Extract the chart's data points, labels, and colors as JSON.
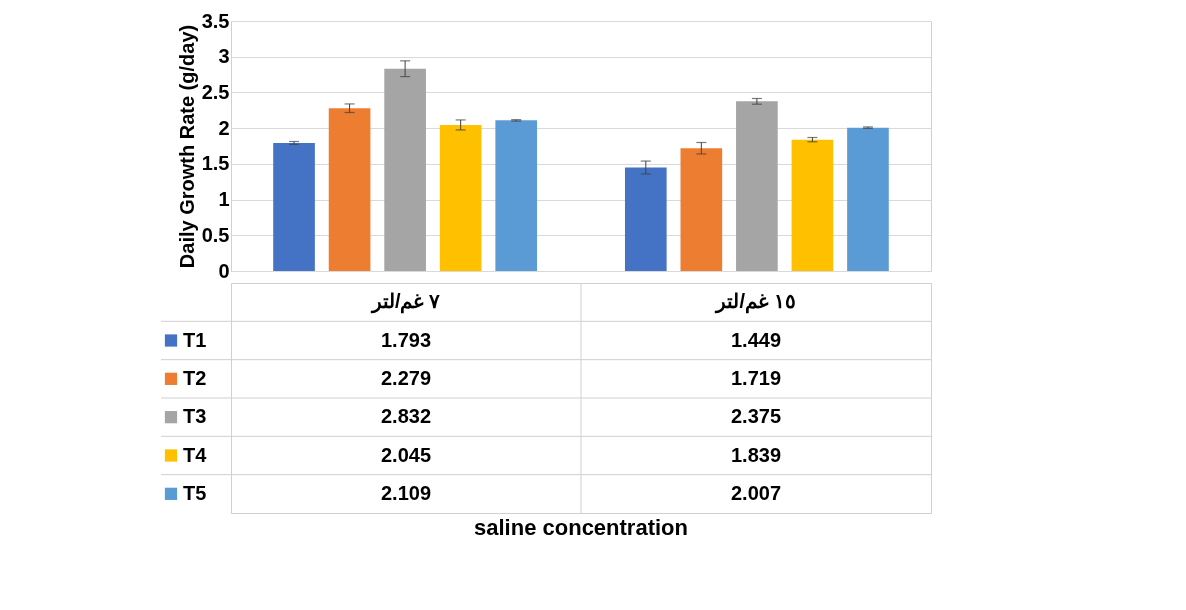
{
  "chart_data": {
    "type": "bar",
    "annotations": [
      "saline concentration"
    ],
    "ylabel": "Daily Growth Rate (g/day)",
    "categories": [
      "٧ غم/لتر",
      "١٥ غم/لتر"
    ],
    "series": [
      {
        "name": "T1",
        "color": "#4472c4",
        "values": [
          1.793,
          1.449
        ],
        "errors": [
          0.02,
          0.09
        ]
      },
      {
        "name": "T2",
        "color": "#ed7d31",
        "values": [
          2.279,
          1.719
        ],
        "errors": [
          0.06,
          0.08
        ]
      },
      {
        "name": "T3",
        "color": "#a5a5a5",
        "values": [
          2.832,
          2.375
        ],
        "errors": [
          0.11,
          0.04
        ]
      },
      {
        "name": "T4",
        "color": "#ffc000",
        "values": [
          2.045,
          1.839
        ],
        "errors": [
          0.07,
          0.03
        ]
      },
      {
        "name": "T5",
        "color": "#5b9bd5",
        "values": [
          2.109,
          2.007
        ],
        "errors": [
          0.01,
          0.01
        ]
      }
    ],
    "ylim": [
      0,
      3.5
    ],
    "yticks": [
      0,
      0.5,
      1,
      1.5,
      2,
      2.5,
      3,
      3.5
    ],
    "grid": "y",
    "data_labels": true,
    "legend": "left"
  }
}
